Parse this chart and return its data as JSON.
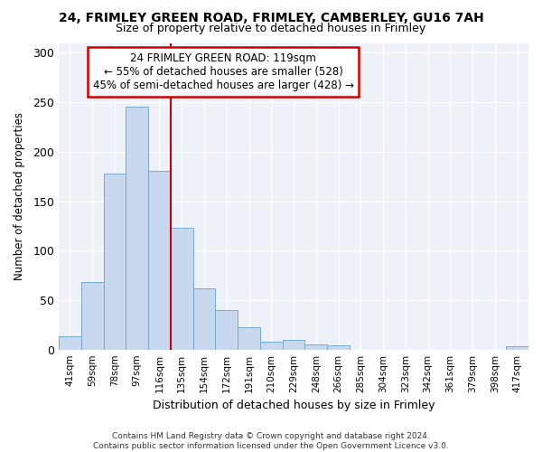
{
  "title1": "24, FRIMLEY GREEN ROAD, FRIMLEY, CAMBERLEY, GU16 7AH",
  "title2": "Size of property relative to detached houses in Frimley",
  "xlabel": "Distribution of detached houses by size in Frimley",
  "ylabel": "Number of detached properties",
  "bins": [
    "41sqm",
    "59sqm",
    "78sqm",
    "97sqm",
    "116sqm",
    "135sqm",
    "154sqm",
    "172sqm",
    "191sqm",
    "210sqm",
    "229sqm",
    "248sqm",
    "266sqm",
    "285sqm",
    "304sqm",
    "323sqm",
    "342sqm",
    "361sqm",
    "379sqm",
    "398sqm",
    "417sqm"
  ],
  "bar_values": [
    13,
    68,
    178,
    246,
    181,
    123,
    62,
    40,
    23,
    8,
    10,
    5,
    4,
    0,
    0,
    0,
    0,
    0,
    0,
    0,
    3
  ],
  "bar_color": "#c8d8ee",
  "bar_edge_color": "#7aaad0",
  "red_line_index": 4,
  "annotation_line1": "24 FRIMLEY GREEN ROAD: 119sqm",
  "annotation_line2": "← 55% of detached houses are smaller (528)",
  "annotation_line3": "45% of semi-detached houses are larger (428) →",
  "vline_color": "#cc0000",
  "ann_box_color": "#cc0000",
  "ylim": [
    0,
    310
  ],
  "yticks": [
    0,
    50,
    100,
    150,
    200,
    250,
    300
  ],
  "bg_color": "#ffffff",
  "plot_bg_color": "#eef2f8",
  "grid_color": "#ffffff",
  "title1_fontsize": 10,
  "title2_fontsize": 9,
  "footer1": "Contains HM Land Registry data © Crown copyright and database right 2024.",
  "footer2": "Contains public sector information licensed under the Open Government Licence v3.0."
}
